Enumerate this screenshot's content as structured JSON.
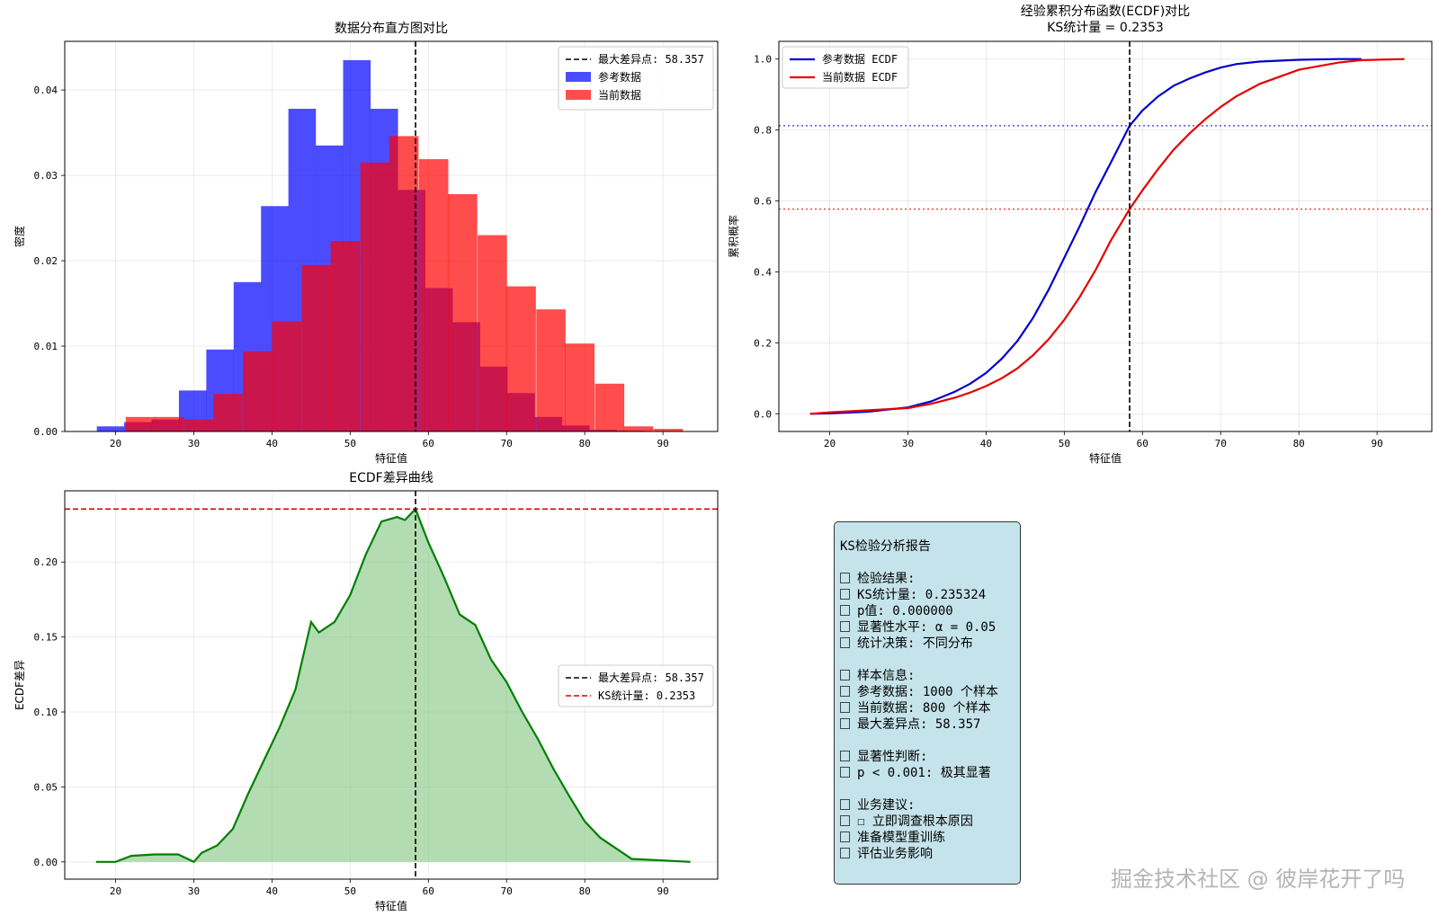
{
  "chart_data": [
    {
      "id": "hist",
      "type": "bar",
      "title": "数据分布直方图对比",
      "xlabel": "特征值",
      "ylabel": "密度",
      "xlim": [
        13.5,
        97.0
      ],
      "ylim": [
        0,
        0.0457
      ],
      "xticks": [
        20,
        30,
        40,
        50,
        60,
        70,
        80,
        90
      ],
      "yticks": [
        0.0,
        0.01,
        0.02,
        0.03,
        0.04
      ],
      "ytick_labels": [
        "0.00",
        "0.01",
        "0.02",
        "0.03",
        "0.04"
      ],
      "grid": true,
      "legend_position": "top-right",
      "series": [
        {
          "name": "参考数据",
          "color": "#0000ff",
          "alpha": 0.7,
          "bin_width": 3.52,
          "bin_starts": [
            17.6,
            21.1,
            24.6,
            28.1,
            31.6,
            35.1,
            38.6,
            42.1,
            45.6,
            49.1,
            52.6,
            56.1,
            59.6,
            63.1,
            66.6,
            70.1,
            73.6,
            77.1,
            80.6,
            84.1
          ],
          "values": [
            0.0006,
            0.0011,
            0.0014,
            0.0048,
            0.0096,
            0.0175,
            0.0264,
            0.0378,
            0.0335,
            0.0435,
            0.0378,
            0.0283,
            0.0168,
            0.0128,
            0.0076,
            0.0045,
            0.0017,
            0.0007,
            0.0002,
            0.0001
          ]
        },
        {
          "name": "当前数据",
          "color": "#ff0000",
          "alpha": 0.7,
          "bin_width": 3.75,
          "bin_starts": [
            17.5,
            21.3,
            25.0,
            28.8,
            32.5,
            36.3,
            40.0,
            43.8,
            47.5,
            51.3,
            55.0,
            58.8,
            62.5,
            66.3,
            70.0,
            73.8,
            77.5,
            81.3,
            85.0,
            88.8
          ],
          "values": [
            0.0,
            0.0017,
            0.0017,
            0.0014,
            0.0044,
            0.0094,
            0.0129,
            0.0195,
            0.0223,
            0.0315,
            0.0346,
            0.0319,
            0.0278,
            0.023,
            0.017,
            0.0143,
            0.0103,
            0.0056,
            0.0006,
            0.0003
          ]
        }
      ],
      "legend": [
        "最大差异点: 58.357",
        "参考数据",
        "当前数据"
      ],
      "vline": {
        "x": 58.357,
        "color": "#000000"
      }
    },
    {
      "id": "ecdf",
      "type": "line",
      "title": "经验累积分布函数(ECDF)对比",
      "subtitle": "KS统计量 = 0.2353",
      "xlabel": "特征值",
      "ylabel": "累积概率",
      "xlim": [
        13.5,
        97.0
      ],
      "ylim": [
        -0.05,
        1.05
      ],
      "xticks": [
        20,
        30,
        40,
        50,
        60,
        70,
        80,
        90
      ],
      "yticks": [
        0.0,
        0.2,
        0.4,
        0.6,
        0.8,
        1.0
      ],
      "ytick_labels": [
        "0.0",
        "0.2",
        "0.4",
        "0.6",
        "0.8",
        "1.0"
      ],
      "grid": true,
      "legend_position": "top-left",
      "series": [
        {
          "name": "参考数据 ECDF",
          "color": "#0000cc",
          "x": [
            17.5,
            20,
            25,
            30,
            33,
            36,
            38,
            40,
            42,
            44,
            46,
            48,
            50,
            52,
            54,
            56,
            58.357,
            60,
            62,
            64,
            66,
            68,
            70,
            72,
            75,
            80,
            85,
            88
          ],
          "y": [
            0.0,
            0.001,
            0.006,
            0.018,
            0.035,
            0.062,
            0.085,
            0.115,
            0.155,
            0.205,
            0.27,
            0.35,
            0.44,
            0.53,
            0.625,
            0.71,
            0.812,
            0.855,
            0.895,
            0.925,
            0.945,
            0.962,
            0.976,
            0.986,
            0.993,
            0.998,
            1.0,
            1.0
          ]
        },
        {
          "name": "当前数据 ECDF",
          "color": "#e60000",
          "x": [
            17.5,
            20,
            25,
            30,
            33,
            36,
            38,
            40,
            42,
            44,
            46,
            48,
            50,
            52,
            54,
            56,
            58.357,
            60,
            62,
            64,
            66,
            68,
            70,
            72,
            75,
            80,
            85,
            88,
            93.5
          ],
          "y": [
            0.0,
            0.004,
            0.01,
            0.016,
            0.028,
            0.045,
            0.06,
            0.078,
            0.1,
            0.128,
            0.165,
            0.21,
            0.265,
            0.33,
            0.405,
            0.49,
            0.577,
            0.63,
            0.69,
            0.745,
            0.79,
            0.83,
            0.865,
            0.895,
            0.93,
            0.97,
            0.99,
            0.997,
            1.0
          ]
        }
      ],
      "hlines": [
        {
          "y": 0.812,
          "color": "#0000cc",
          "style": "dotted"
        },
        {
          "y": 0.577,
          "color": "#e60000",
          "style": "dotted"
        }
      ],
      "vline": {
        "x": 58.357,
        "color": "#000000"
      }
    },
    {
      "id": "diff",
      "type": "area",
      "title": "ECDF差异曲线",
      "xlabel": "特征值",
      "ylabel": "ECDF差异",
      "xlim": [
        13.5,
        97.0
      ],
      "ylim": [
        -0.0115,
        0.2475
      ],
      "xticks": [
        20,
        30,
        40,
        50,
        60,
        70,
        80,
        90
      ],
      "yticks": [
        0.0,
        0.05,
        0.1,
        0.15,
        0.2
      ],
      "ytick_labels": [
        "0.00",
        "0.05",
        "0.10",
        "0.15",
        "0.20"
      ],
      "grid": true,
      "legend_position": "center-right",
      "series": [
        {
          "name": "ECDF差异",
          "color": "#008000",
          "fill": "#8bc98b",
          "x": [
            17.5,
            20,
            22,
            25,
            28,
            30,
            31,
            33,
            35,
            37,
            39,
            41,
            43,
            45,
            46,
            48,
            50,
            52,
            54,
            56,
            57,
            58.357,
            60,
            62,
            64,
            66,
            68,
            70,
            72,
            74,
            76,
            78,
            80,
            82,
            84,
            86,
            90,
            93.5
          ],
          "y": [
            0.0,
            0.0,
            0.004,
            0.005,
            0.005,
            0.0,
            0.006,
            0.011,
            0.022,
            0.046,
            0.068,
            0.09,
            0.115,
            0.16,
            0.153,
            0.16,
            0.178,
            0.205,
            0.227,
            0.23,
            0.228,
            0.2353,
            0.213,
            0.19,
            0.165,
            0.158,
            0.135,
            0.12,
            0.1,
            0.082,
            0.062,
            0.044,
            0.027,
            0.016,
            0.009,
            0.002,
            0.001,
            0.0
          ]
        }
      ],
      "legend": [
        "最大差异点: 58.357",
        "KS统计量: 0.2353"
      ],
      "hline": {
        "y": 0.2353,
        "color": "#dd0000",
        "style": "dashed"
      },
      "vline": {
        "x": 58.357,
        "color": "#000000"
      }
    }
  ],
  "report": {
    "title": "KS检验分析报告",
    "sections": [
      {
        "lines": [
          "检验结果:",
          "KS统计量: 0.235324",
          "p值: 0.000000",
          "显著性水平: α = 0.05",
          "统计决策: 不同分布"
        ]
      },
      {
        "lines": [
          "样本信息:",
          "参考数据: 1000 个样本",
          "当前数据: 800 个样本",
          "最大差异点: 58.357"
        ]
      },
      {
        "lines": [
          "显著性判断:",
          "p < 0.001: 极其显著"
        ]
      },
      {
        "lines": [
          "业务建议:",
          "☐ 立即调查根本原因",
          "准备模型重训练",
          "评估业务影响"
        ]
      }
    ]
  },
  "watermark": "掘金技术社区 @ 彼岸花开了吗"
}
